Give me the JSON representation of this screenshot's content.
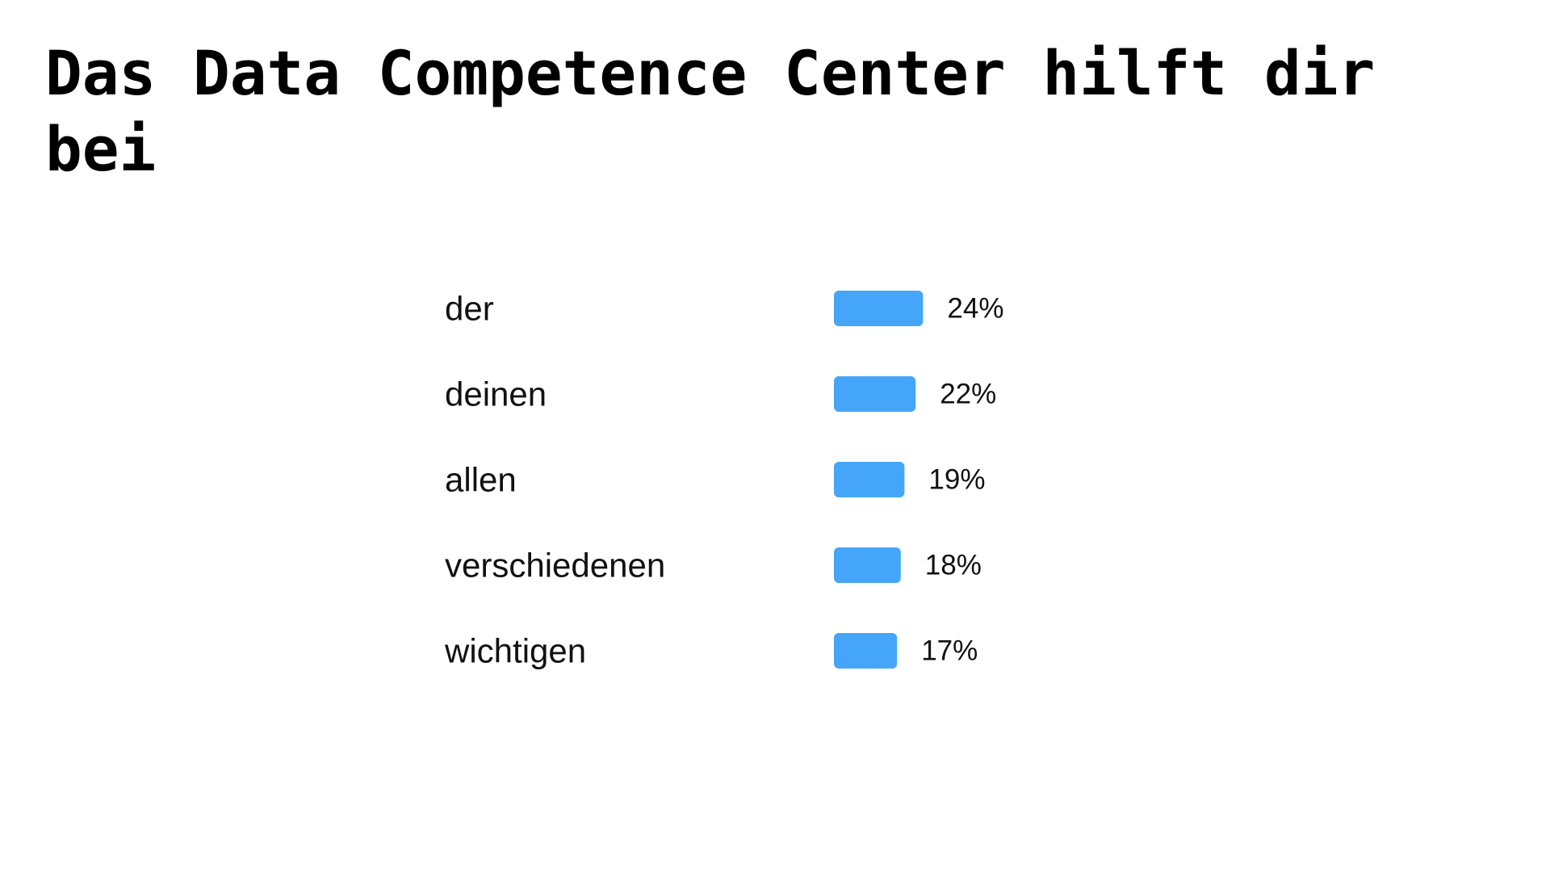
{
  "title": "Das Data Competence Center hilft dir bei",
  "chart_data": {
    "type": "bar",
    "orientation": "horizontal",
    "categories": [
      "der",
      "deinen",
      "allen",
      "verschiedenen",
      "wichtigen"
    ],
    "values": [
      24,
      22,
      19,
      18,
      17
    ],
    "value_labels": [
      "24%",
      "22%",
      "19%",
      "18%",
      "17%"
    ],
    "unit": "%",
    "bar_color": "#45A5F8",
    "grid": false,
    "legend": "none"
  }
}
